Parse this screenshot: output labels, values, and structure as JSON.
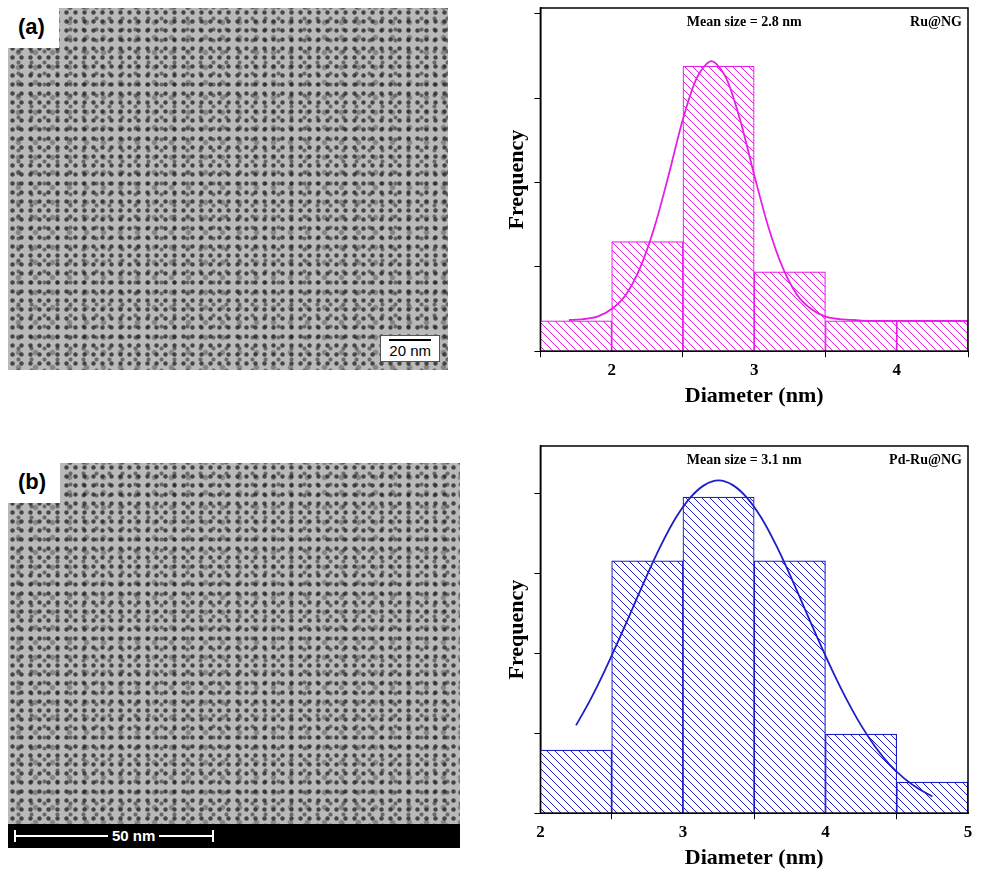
{
  "images": [
    {
      "label": "(a)",
      "scale_bar": "20 nm"
    },
    {
      "label": "(b)",
      "scale_bar": "50 nm"
    }
  ],
  "chart_data": [
    {
      "type": "histogram",
      "x_label": "Diameter (nm)",
      "y_label": "Frequency",
      "annotations": [
        "Mean size = 2.8 nm",
        "Ru@NG"
      ],
      "bins": [
        1.5,
        2,
        2.5,
        3,
        3.5,
        4,
        4.5
      ],
      "counts": [
        0.36,
        1.3,
        3.38,
        0.94,
        0.36,
        0.36
      ],
      "color": "#e61ee6",
      "fit": {
        "type": "line",
        "color": "#e61ee6",
        "x": [
          1.7,
          1.8,
          1.9,
          2.0,
          2.1,
          2.2,
          2.3,
          2.4,
          2.5,
          2.6,
          2.7,
          2.8,
          2.9,
          3.0,
          3.1,
          3.2,
          3.3,
          3.4,
          3.5,
          3.6,
          3.7,
          3.8,
          3.9,
          4.0,
          4.1,
          4.2,
          4.3,
          4.4,
          4.5
        ],
        "values": [
          0.37,
          0.38,
          0.41,
          0.5,
          0.67,
          0.99,
          1.47,
          2.09,
          2.75,
          3.25,
          3.44,
          3.25,
          2.75,
          2.09,
          1.47,
          0.99,
          0.67,
          0.5,
          0.41,
          0.38,
          0.37,
          0.36,
          0.36,
          0.36,
          0.36,
          0.36,
          0.36,
          0.36,
          0.36
        ]
      },
      "xlim": [
        1.5,
        4.5
      ],
      "xticks": [
        2,
        3,
        4
      ],
      "ylim": [
        0,
        4.07
      ],
      "yticks": [
        0,
        1,
        2,
        3,
        4
      ],
      "tick_labels": "x",
      "grid": false
    },
    {
      "type": "histogram",
      "x_label": "Diameter (nm)",
      "y_label": "Frequency",
      "annotations": [
        "Mean size = 3.1 nm",
        "Pd-Ru@NG"
      ],
      "bins": [
        2,
        2.5,
        3,
        3.5,
        4,
        4.5,
        5
      ],
      "counts": [
        0.79,
        3.16,
        3.96,
        3.16,
        0.99,
        0.39
      ],
      "color": "#1e1ec8",
      "fit": {
        "type": "line",
        "color": "#1e1ec8",
        "x": [
          2.25,
          2.35,
          2.45,
          2.55,
          2.65,
          2.75,
          2.85,
          2.95,
          3.05,
          3.15,
          3.25,
          3.35,
          3.45,
          3.55,
          3.65,
          3.75,
          3.85,
          3.95,
          4.05,
          4.15,
          4.25,
          4.35,
          4.45,
          4.55,
          4.65,
          4.75
        ],
        "values": [
          1.1,
          1.42,
          1.78,
          2.17,
          2.58,
          2.99,
          3.37,
          3.7,
          3.95,
          4.11,
          4.17,
          4.11,
          3.95,
          3.7,
          3.37,
          2.99,
          2.58,
          2.17,
          1.78,
          1.42,
          1.1,
          0.83,
          0.61,
          0.44,
          0.31,
          0.21
        ]
      },
      "xlim": [
        2,
        5
      ],
      "xticks": [
        2,
        3,
        4,
        5
      ],
      "ylim": [
        0,
        4.6
      ],
      "yticks": [
        0,
        1,
        2,
        3,
        4
      ],
      "tick_labels": "x",
      "grid": false
    }
  ]
}
